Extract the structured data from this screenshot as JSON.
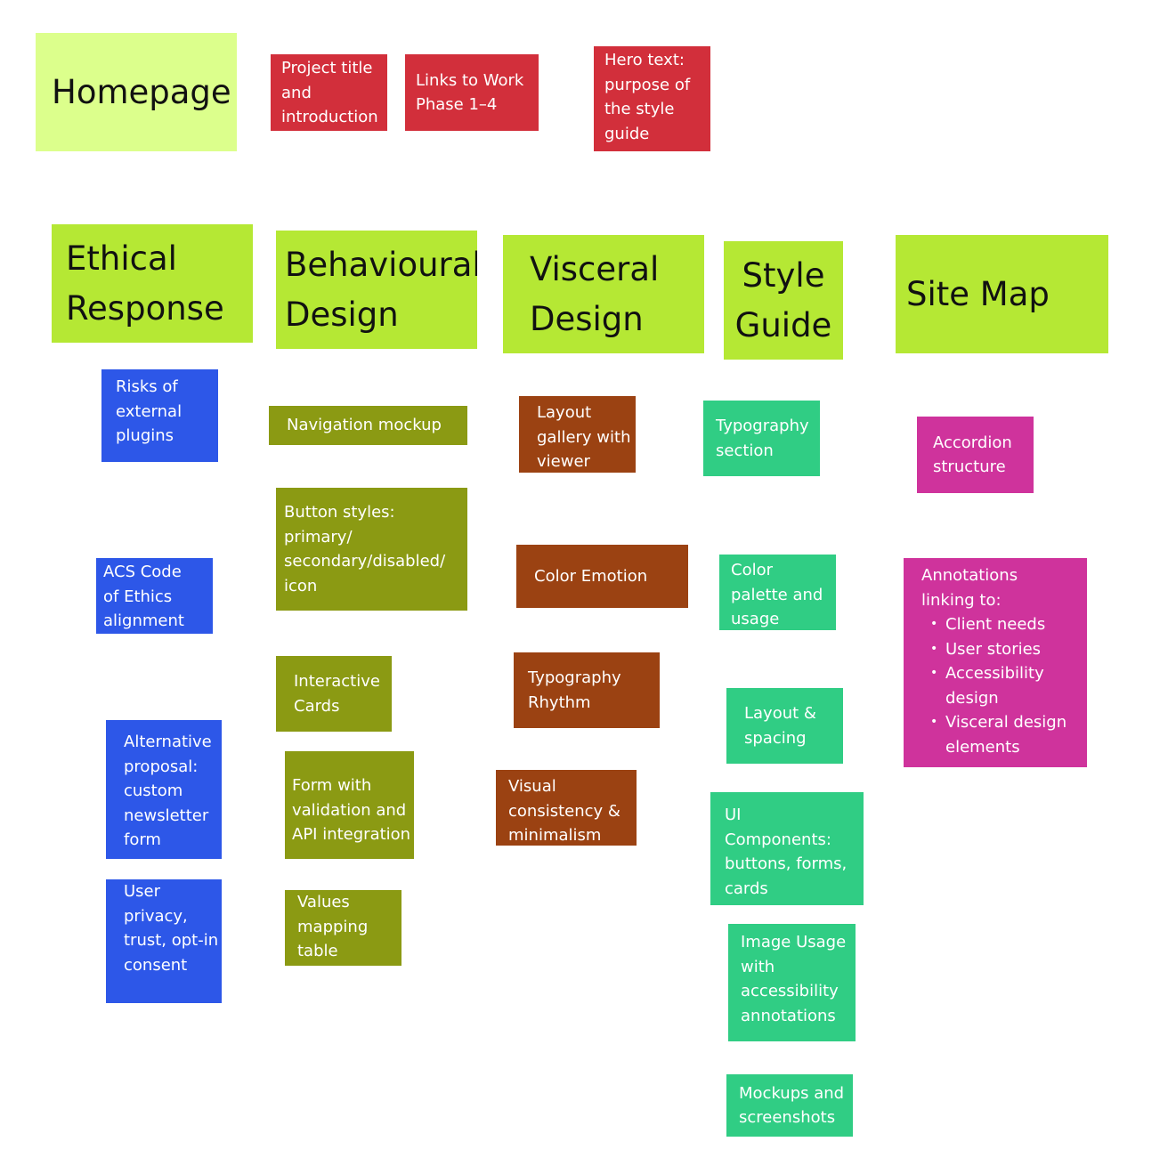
{
  "headers": {
    "homepage": "Homepage",
    "ethical": "Ethical\nResponse",
    "behavioural": "Behavioural\nDesign",
    "visceral": "Visceral\nDesign",
    "style_guide": "Style\nGuide",
    "site_map": "Site Map"
  },
  "homepage_notes": {
    "project_title": "Project title\nand\nintroduction",
    "links_work": "Links to Work\nPhase 1–4",
    "hero_text": "Hero text:\npurpose of\nthe style\nguide"
  },
  "ethical_notes": {
    "risks": "Risks of\nexternal\nplugins",
    "acs": "ACS Code\nof Ethics\nalignment",
    "alternative": "Alternative\nproposal:\ncustom\nnewsletter\nform",
    "privacy": "User\nprivacy,\ntrust, opt-in\nconsent"
  },
  "behavioural_notes": {
    "navigation": "Navigation mockup",
    "buttons": "Button styles: primary/\nsecondary/disabled/\nicon",
    "cards": "Interactive\nCards",
    "form": "Form with\nvalidation and\nAPI integration",
    "values": "Values\nmapping\ntable"
  },
  "visceral_notes": {
    "layout_gallery": "Layout\ngallery with\nviewer",
    "color_emotion": "Color Emotion",
    "typography_rhythm": "Typography\nRhythm",
    "visual_consistency": "Visual\nconsistency &\nminimalism"
  },
  "style_notes": {
    "typography": "Typography\nsection",
    "color_palette": "Color\npalette and\nusage",
    "layout_spacing": "Layout &\nspacing",
    "ui_components": "UI\nComponents:\nbuttons, forms,\ncards",
    "image_usage": "Image Usage\nwith\naccessibility\nannotations",
    "mockups": "Mockups and\nscreenshots"
  },
  "sitemap_notes": {
    "accordion": "Accordion\nstructure",
    "annotations_title": "Annotations\nlinking to:",
    "annotations_items": [
      "Client needs",
      "User stories",
      "Accessibility\ndesign",
      "Visceral design\nelements"
    ]
  }
}
